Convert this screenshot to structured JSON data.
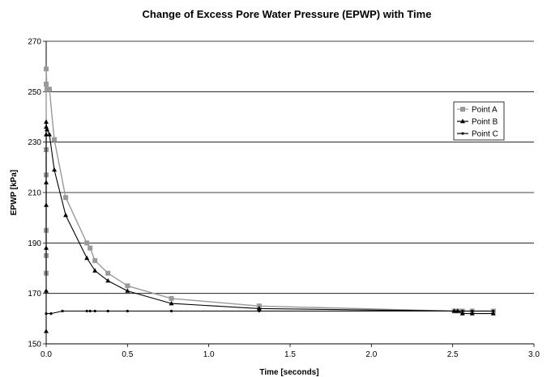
{
  "chart_data": {
    "type": "line",
    "title": "Change of Excess Pore Water Pressure (EPWP) with Time",
    "xlabel": "Time [seconds]",
    "ylabel": "EPWP [kPa]",
    "xlim": [
      0,
      3.0
    ],
    "ylim": [
      150,
      270
    ],
    "x_ticks": [
      "0.0",
      "0.5",
      "1.0",
      "1.5",
      "2.0",
      "2.5",
      "3.0"
    ],
    "y_ticks": [
      "150",
      "170",
      "190",
      "210",
      "230",
      "250",
      "270"
    ],
    "grid": "horizontal major gridlines",
    "legend_position": "right",
    "series": [
      {
        "name": "Point A",
        "color": "#999999",
        "marker": "square",
        "x": [
          0.0,
          0.0,
          0.0,
          0.0,
          0.0,
          0.0,
          0.0,
          0.005,
          0.02,
          0.05,
          0.12,
          0.25,
          0.27,
          0.3,
          0.38,
          0.5,
          0.77,
          1.31,
          2.51,
          2.53,
          2.56,
          2.62,
          2.75
        ],
        "y": [
          178,
          185,
          195,
          217,
          227,
          253,
          259,
          251,
          251,
          231,
          208,
          190,
          188,
          183,
          178,
          173,
          168,
          165,
          163,
          163,
          163,
          163,
          163
        ]
      },
      {
        "name": "Point B",
        "color": "#000000",
        "marker": "triangle",
        "x": [
          0.0,
          0.0,
          0.0,
          0.0,
          0.0,
          0.0,
          0.0,
          0.0,
          0.005,
          0.02,
          0.05,
          0.12,
          0.25,
          0.3,
          0.38,
          0.5,
          0.77,
          1.31,
          2.51,
          2.53,
          2.56,
          2.62,
          2.75
        ],
        "y": [
          155,
          171,
          188,
          205,
          214,
          233,
          236,
          238,
          235,
          233,
          219,
          201,
          184,
          179,
          175,
          171,
          166,
          164,
          163,
          163,
          162,
          162,
          162
        ]
      },
      {
        "name": "Point C",
        "color": "#000000",
        "marker": "dot",
        "x": [
          0.0,
          0.03,
          0.1,
          0.25,
          0.27,
          0.3,
          0.38,
          0.5,
          0.77,
          1.31,
          2.51,
          2.53,
          2.56,
          2.62,
          2.75
        ],
        "y": [
          162,
          162,
          163,
          163,
          163,
          163,
          163,
          163,
          163,
          163,
          163,
          163,
          163,
          163,
          163
        ]
      }
    ]
  }
}
